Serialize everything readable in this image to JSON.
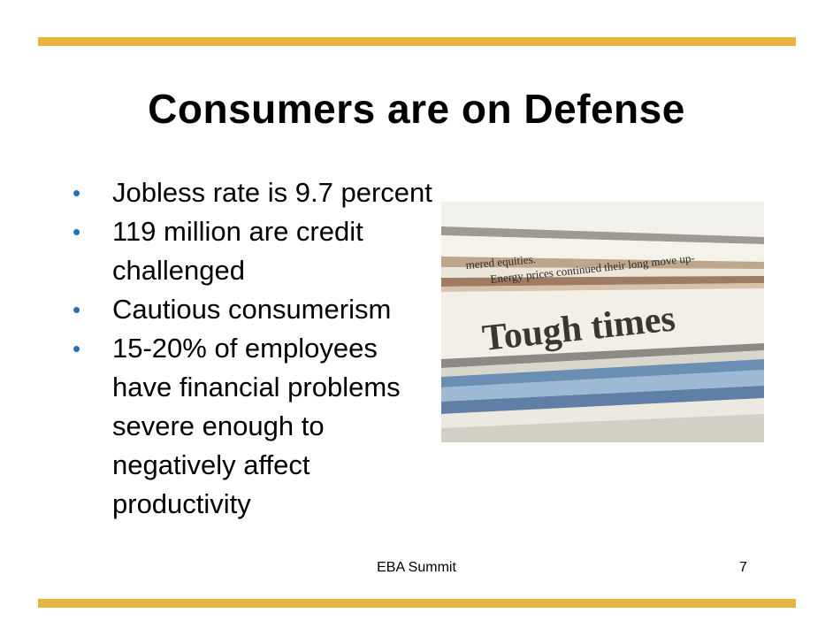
{
  "slide": {
    "title": "Consumers are on Defense",
    "bullets": [
      "Jobless rate is 9.7 percent",
      "119 million are credit challenged",
      "Cautious consumerism",
      "15-20% of employees have financial problems severe enough to negatively affect productivity"
    ],
    "footer": "EBA Summit",
    "page_number": "7",
    "accent_color": "#e8b543",
    "bullet_color": "#2b6fb0"
  },
  "photo": {
    "headline": "Tough times",
    "line1": "mered equities.",
    "line2": "Energy prices continued their long move up-"
  }
}
